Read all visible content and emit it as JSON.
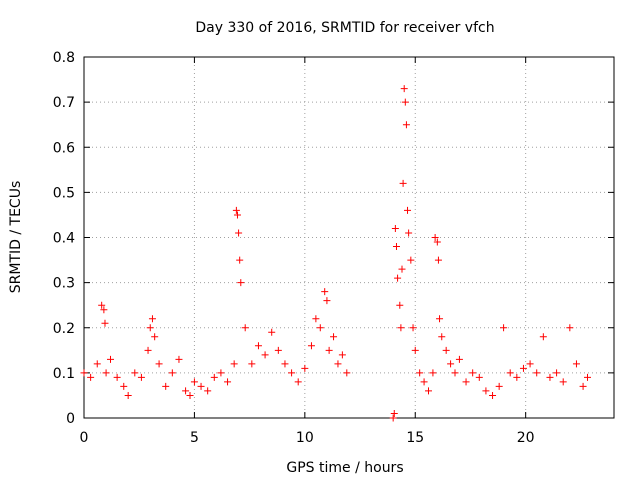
{
  "chart_data": {
    "type": "scatter",
    "title": "Day 330 of 2016, SRMTID for receiver vfch",
    "xlabel": "GPS time / hours",
    "ylabel": "SRMTID / TECUs",
    "xlim": [
      0,
      24
    ],
    "ylim": [
      0,
      0.8
    ],
    "xticks": [
      0,
      5,
      10,
      15,
      20
    ],
    "yticks": [
      0,
      0.1,
      0.2,
      0.3,
      0.4,
      0.5,
      0.6,
      0.7,
      0.8
    ],
    "xtick_labels": [
      "0",
      "5",
      "10",
      "15",
      "20"
    ],
    "ytick_labels": [
      "0",
      "0.1",
      "0.2",
      "0.3",
      "0.4",
      "0.5",
      "0.6",
      "0.7",
      "0.8"
    ],
    "grid": true,
    "marker": "+",
    "color": "#ff0000",
    "series": [
      {
        "name": "SRMTID",
        "x": [
          0.0,
          0.3,
          0.6,
          0.8,
          0.9,
          0.95,
          1.0,
          1.2,
          1.5,
          1.8,
          2.0,
          2.3,
          2.6,
          2.9,
          3.0,
          3.1,
          3.2,
          3.4,
          3.7,
          4.0,
          4.3,
          4.6,
          4.8,
          5.0,
          5.3,
          5.6,
          5.9,
          6.2,
          6.5,
          6.8,
          6.9,
          6.95,
          7.0,
          7.05,
          7.1,
          7.3,
          7.6,
          7.9,
          8.2,
          8.5,
          8.8,
          9.1,
          9.4,
          9.7,
          10.0,
          10.3,
          10.5,
          10.7,
          10.9,
          11.0,
          11.1,
          11.3,
          11.5,
          11.7,
          11.9,
          14.0,
          14.05,
          14.1,
          14.15,
          14.2,
          14.3,
          14.35,
          14.4,
          14.45,
          14.5,
          14.55,
          14.6,
          14.65,
          14.7,
          14.8,
          14.9,
          15.0,
          15.2,
          15.4,
          15.6,
          15.8,
          15.9,
          16.0,
          16.05,
          16.1,
          16.2,
          16.4,
          16.6,
          16.8,
          17.0,
          17.3,
          17.6,
          17.9,
          18.2,
          18.5,
          18.8,
          19.0,
          19.3,
          19.6,
          19.9,
          20.2,
          20.5,
          20.8,
          21.1,
          21.4,
          21.7,
          22.0,
          22.3,
          22.6,
          22.8
        ],
        "y": [
          0.1,
          0.09,
          0.12,
          0.25,
          0.24,
          0.21,
          0.1,
          0.13,
          0.09,
          0.07,
          0.05,
          0.1,
          0.09,
          0.15,
          0.2,
          0.22,
          0.18,
          0.12,
          0.07,
          0.1,
          0.13,
          0.06,
          0.05,
          0.08,
          0.07,
          0.06,
          0.09,
          0.1,
          0.08,
          0.12,
          0.46,
          0.45,
          0.41,
          0.35,
          0.3,
          0.2,
          0.12,
          0.16,
          0.14,
          0.19,
          0.15,
          0.12,
          0.1,
          0.08,
          0.11,
          0.16,
          0.22,
          0.2,
          0.28,
          0.26,
          0.15,
          0.18,
          0.12,
          0.14,
          0.1,
          0.0,
          0.01,
          0.42,
          0.38,
          0.31,
          0.25,
          0.2,
          0.33,
          0.52,
          0.73,
          0.7,
          0.65,
          0.46,
          0.41,
          0.35,
          0.2,
          0.15,
          0.1,
          0.08,
          0.06,
          0.1,
          0.4,
          0.39,
          0.35,
          0.22,
          0.18,
          0.15,
          0.12,
          0.1,
          0.13,
          0.08,
          0.1,
          0.09,
          0.06,
          0.05,
          0.07,
          0.2,
          0.1,
          0.09,
          0.11,
          0.12,
          0.1,
          0.18,
          0.09,
          0.1,
          0.08,
          0.2,
          0.12,
          0.07,
          0.09
        ]
      }
    ]
  }
}
